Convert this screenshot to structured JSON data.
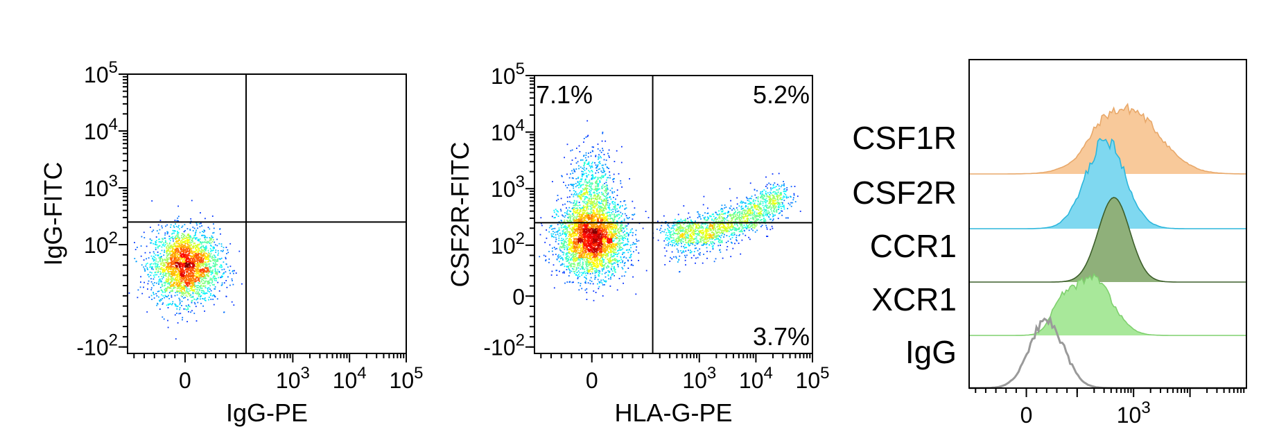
{
  "chart_data": [
    {
      "type": "scatter",
      "style": "density-dot-plot",
      "xlabel": "IgG-PE",
      "ylabel": "IgG-FITC",
      "x_ticks": [
        {
          "label": "0",
          "value": 0
        },
        {
          "base": "10",
          "exp": "3",
          "value": 1000
        },
        {
          "base": "10",
          "exp": "4",
          "value": 10000
        },
        {
          "base": "10",
          "exp": "5",
          "value": 100000
        }
      ],
      "y_ticks": [
        {
          "base": "-10",
          "exp": "2",
          "value": -100
        },
        {
          "base": "10",
          "exp": "2",
          "value": 100
        },
        {
          "base": "10",
          "exp": "3",
          "value": 1000
        },
        {
          "base": "10",
          "exp": "4",
          "value": 10000
        },
        {
          "base": "10",
          "exp": "5",
          "value": 100000
        }
      ],
      "scale": "biexponential",
      "gate": {
        "x": 150,
        "y": 250
      },
      "quadrant_labels": [],
      "populations": [
        {
          "name": "main",
          "cx": 0,
          "cy": 60,
          "n": 2600
        }
      ]
    },
    {
      "type": "scatter",
      "style": "density-dot-plot",
      "xlabel": "HLA-G-PE",
      "ylabel": "CSF2R-FITC",
      "x_ticks": [
        {
          "label": "0",
          "value": 0
        },
        {
          "base": "10",
          "exp": "3",
          "value": 1000
        },
        {
          "base": "10",
          "exp": "4",
          "value": 10000
        },
        {
          "base": "10",
          "exp": "5",
          "value": 100000
        }
      ],
      "y_ticks": [
        {
          "base": "-10",
          "exp": "2",
          "value": -100
        },
        {
          "label": "0",
          "value": 0
        },
        {
          "base": "10",
          "exp": "2",
          "value": 100
        },
        {
          "base": "10",
          "exp": "3",
          "value": 1000
        },
        {
          "base": "10",
          "exp": "4",
          "value": 10000
        },
        {
          "base": "10",
          "exp": "5",
          "value": 100000
        }
      ],
      "scale": "biexponential",
      "gate": {
        "x": 150,
        "y": 250
      },
      "quadrant_labels": [
        {
          "position": "top-left",
          "text": "7.1%"
        },
        {
          "position": "top-right",
          "text": "5.2%"
        },
        {
          "position": "bottom-right",
          "text": "3.7%"
        }
      ],
      "populations": [
        {
          "name": "main",
          "cx": 0,
          "cy": 130,
          "n": 3200
        },
        {
          "name": "diagonal",
          "x_from": 300,
          "x_to": 30000,
          "y_from": 150,
          "y_to": 800,
          "n": 1700
        },
        {
          "name": "upper-left",
          "cx": 0,
          "cy": 900,
          "n": 650
        }
      ]
    },
    {
      "type": "histogram-overlay",
      "x_ticks": [
        {
          "label": "0",
          "value": 0
        },
        {
          "base": "10",
          "exp": "3",
          "value": 1000
        }
      ],
      "series": [
        {
          "name": "CSF1R",
          "fill": "#f8c99a",
          "stroke": "#e8a86a",
          "center": 800,
          "width": 0.55,
          "jagged": true
        },
        {
          "name": "CSF2R",
          "fill": "#7fd8f0",
          "stroke": "#2bb6dc",
          "center": 320,
          "width": 0.35,
          "jagged": true
        },
        {
          "name": "CCR1",
          "fill": "#8fb07a",
          "stroke": "#3c5e2a",
          "center": 450,
          "width": 0.28,
          "jagged": false
        },
        {
          "name": "XCR1",
          "fill": "#a8e89a",
          "stroke": "#7fd06e",
          "center": 180,
          "width": 0.35,
          "jagged": true
        },
        {
          "name": "IgG",
          "fill": "none",
          "stroke": "#9a9a9a",
          "center": 40,
          "width": 0.3,
          "jagged": true
        }
      ]
    }
  ]
}
